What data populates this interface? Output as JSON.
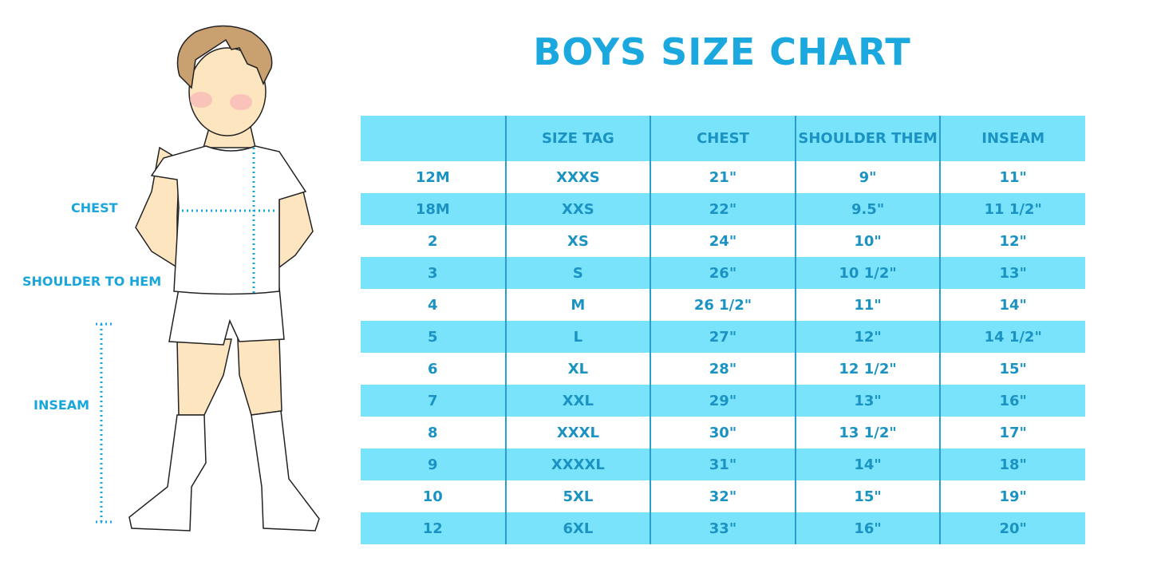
{
  "title": "BOYS SIZE CHART",
  "figure_labels": {
    "chest": "CHEST",
    "shoulder_to_hem": "SHOULDER TO HEM",
    "inseam": "INSEAM"
  },
  "colors": {
    "title": "#1ba8df",
    "header_bg": "#7ae3fc",
    "text": "#1a93c2"
  },
  "table": {
    "headers": [
      "",
      "SIZE TAG",
      "CHEST",
      "SHOULDER THEM",
      "INSEAM"
    ],
    "rows": [
      [
        "12M",
        "XXXS",
        "21\"",
        "9\"",
        "11\""
      ],
      [
        "18M",
        "XXS",
        "22\"",
        "9.5\"",
        "11 1/2\""
      ],
      [
        "2",
        "XS",
        "24\"",
        "10\"",
        "12\""
      ],
      [
        "3",
        "S",
        "26\"",
        "10 1/2\"",
        "13\""
      ],
      [
        "4",
        "M",
        "26 1/2\"",
        "11\"",
        "14\""
      ],
      [
        "5",
        "L",
        "27\"",
        "12\"",
        "14 1/2\""
      ],
      [
        "6",
        "XL",
        "28\"",
        "12 1/2\"",
        "15\""
      ],
      [
        "7",
        "XXL",
        "29\"",
        "13\"",
        "16\""
      ],
      [
        "8",
        "XXXL",
        "30\"",
        "13 1/2\"",
        "17\""
      ],
      [
        "9",
        "XXXXL",
        "31\"",
        "14\"",
        "18\""
      ],
      [
        "10",
        "5XL",
        "32\"",
        "15\"",
        "19\""
      ],
      [
        "12",
        "6XL",
        "33\"",
        "16\"",
        "20\""
      ]
    ]
  }
}
